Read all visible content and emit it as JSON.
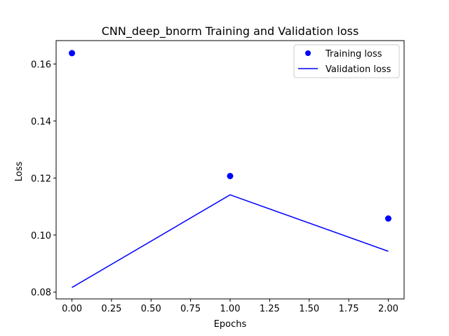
{
  "chart_data": {
    "type": "line",
    "title": "CNN_deep_bnorm Training and Validation loss",
    "xlabel": "Epochs",
    "ylabel": "Loss",
    "xlim": [
      -0.1,
      2.1
    ],
    "ylim": [
      0.0776,
      0.1682
    ],
    "x_ticks": [
      0.0,
      0.25,
      0.5,
      0.75,
      1.0,
      1.25,
      1.5,
      1.75,
      2.0
    ],
    "x_tick_labels": [
      "0.00",
      "0.25",
      "0.50",
      "0.75",
      "1.00",
      "1.25",
      "1.50",
      "1.75",
      "2.00"
    ],
    "y_ticks": [
      0.08,
      0.1,
      0.12,
      0.14,
      0.16
    ],
    "y_tick_labels": [
      "0.08",
      "0.10",
      "0.12",
      "0.14",
      "0.16"
    ],
    "grid": false,
    "legend_position": "top-right",
    "series": [
      {
        "name": "Training loss",
        "style": "markers",
        "color": "#0000ff",
        "x": [
          0,
          1,
          2
        ],
        "y": [
          0.1638,
          0.1207,
          0.1058
        ]
      },
      {
        "name": "Validation loss",
        "style": "line",
        "color": "#0000ff",
        "x": [
          0,
          1,
          2
        ],
        "y": [
          0.0816,
          0.1141,
          0.0943
        ]
      }
    ]
  }
}
